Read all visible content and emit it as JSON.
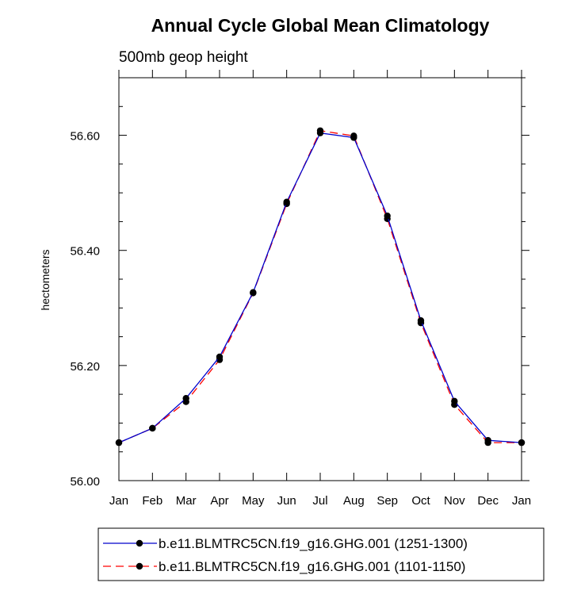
{
  "chart_data": {
    "type": "line",
    "title": "Annual Cycle Global Mean Climatology",
    "subtitle": "500mb geop height",
    "ylabel": "hectometers",
    "xlabel": "",
    "categories": [
      "Jan",
      "Feb",
      "Mar",
      "Apr",
      "May",
      "Jun",
      "Jul",
      "Aug",
      "Sep",
      "Oct",
      "Nov",
      "Dec",
      "Jan"
    ],
    "ylim": [
      56.0,
      56.7
    ],
    "yticks": [
      56.0,
      56.2,
      56.4,
      56.6
    ],
    "ytick_labels": [
      "56.00",
      "56.20",
      "56.40",
      "56.60"
    ],
    "series": [
      {
        "name": "b.e11.BLMTRC5CN.f19_g16.GHG.001 (1251-1300)",
        "color": "#0000cc",
        "dash": "solid",
        "values": [
          56.066,
          56.091,
          56.143,
          56.215,
          56.327,
          56.484,
          56.604,
          56.596,
          56.46,
          56.278,
          56.138,
          56.07,
          56.066
        ]
      },
      {
        "name": "b.e11.BLMTRC5CN.f19_g16.GHG.001 (1101-1150)",
        "color": "#ff0000",
        "dash": "dashed",
        "values": [
          56.066,
          56.091,
          56.137,
          56.21,
          56.326,
          56.481,
          56.608,
          56.599,
          56.455,
          56.274,
          56.132,
          56.066,
          56.066
        ]
      }
    ],
    "legend_position": "bottom"
  }
}
